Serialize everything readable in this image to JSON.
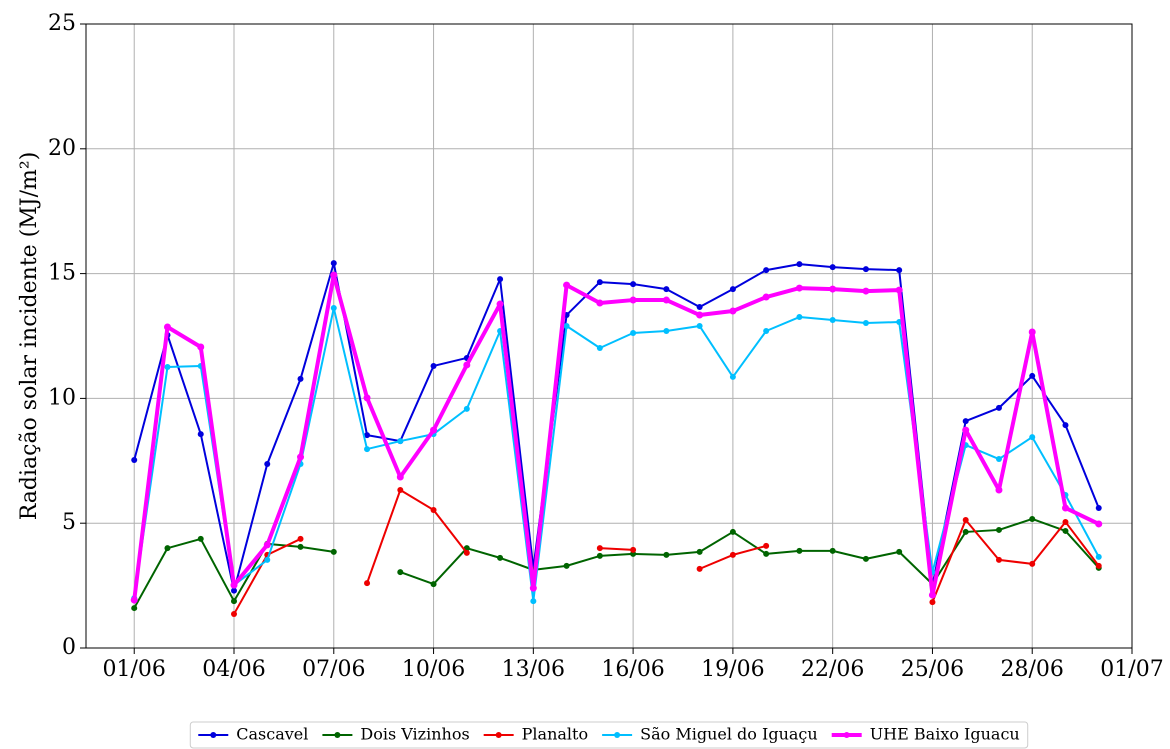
{
  "chart_data": {
    "type": "line",
    "ylabel": "Radiação solar incidente  (MJ/m²)",
    "x": [
      1,
      2,
      3,
      4,
      5,
      6,
      7,
      8,
      9,
      10,
      11,
      12,
      13,
      14,
      15,
      16,
      17,
      18,
      19,
      20,
      21,
      22,
      23,
      24,
      25,
      26,
      27,
      28,
      29,
      30
    ],
    "xlim": [
      -0.45,
      31.0
    ],
    "xticks": [
      {
        "value": 1,
        "label": "01/06"
      },
      {
        "value": 4,
        "label": "04/06"
      },
      {
        "value": 7,
        "label": "07/06"
      },
      {
        "value": 10,
        "label": "10/06"
      },
      {
        "value": 13,
        "label": "13/06"
      },
      {
        "value": 16,
        "label": "16/06"
      },
      {
        "value": 19,
        "label": "19/06"
      },
      {
        "value": 22,
        "label": "22/06"
      },
      {
        "value": 25,
        "label": "25/06"
      },
      {
        "value": 28,
        "label": "28/06"
      },
      {
        "value": 31,
        "label": "01/07"
      }
    ],
    "ylim": [
      0,
      25
    ],
    "yticks": [
      0,
      5,
      10,
      15,
      20,
      25
    ],
    "grid": true,
    "legend": "lower center",
    "series": [
      {
        "name": "Cascavel",
        "color": "#0000dd",
        "values": [
          7.53,
          12.54,
          8.57,
          2.3,
          7.37,
          10.78,
          15.42,
          8.53,
          8.29,
          11.3,
          11.62,
          14.78,
          3.2,
          13.34,
          14.66,
          14.58,
          14.38,
          13.66,
          14.38,
          15.14,
          15.38,
          15.26,
          15.18,
          15.14,
          2.5,
          9.09,
          9.62,
          10.9,
          8.93,
          5.61
        ]
      },
      {
        "name": "Dois Vizinhos",
        "color": "#006400",
        "values": [
          1.6,
          4.0,
          4.37,
          1.88,
          4.17,
          4.05,
          3.85,
          null,
          3.04,
          2.56,
          4.0,
          3.61,
          3.13,
          3.29,
          3.69,
          3.77,
          3.73,
          3.85,
          4.65,
          3.77,
          3.89,
          3.89,
          3.57,
          3.85,
          2.56,
          4.65,
          4.73,
          5.17,
          4.69,
          3.21
        ]
      },
      {
        "name": "Planalto",
        "color": "#ee0000",
        "values": [
          null,
          null,
          null,
          1.36,
          3.73,
          4.37,
          null,
          2.6,
          6.33,
          5.53,
          3.81,
          null,
          null,
          null,
          4.0,
          3.93,
          null,
          3.17,
          3.73,
          4.09,
          null,
          null,
          null,
          null,
          1.84,
          5.13,
          3.53,
          3.37,
          5.05,
          3.29
        ]
      },
      {
        "name": "São Miguel do Iguaçu",
        "color": "#00bfff",
        "values": [
          2.0,
          11.26,
          11.3,
          2.52,
          3.53,
          7.37,
          13.62,
          7.97,
          8.29,
          8.57,
          9.58,
          12.7,
          1.88,
          12.9,
          12.02,
          12.62,
          12.7,
          12.9,
          10.86,
          12.7,
          13.26,
          13.14,
          13.02,
          13.06,
          3.04,
          8.13,
          7.57,
          8.45,
          6.13,
          3.65
        ]
      },
      {
        "name": "UHE Baixo Iguacu",
        "color": "#ff00ff",
        "values": [
          1.92,
          12.86,
          12.06,
          2.52,
          4.13,
          7.65,
          14.94,
          10.02,
          6.85,
          8.73,
          11.34,
          13.78,
          2.4,
          14.54,
          13.82,
          13.94,
          13.94,
          13.34,
          13.5,
          14.06,
          14.42,
          14.38,
          14.3,
          14.34,
          2.12,
          8.73,
          6.33,
          12.66,
          5.61,
          4.97
        ]
      }
    ]
  }
}
